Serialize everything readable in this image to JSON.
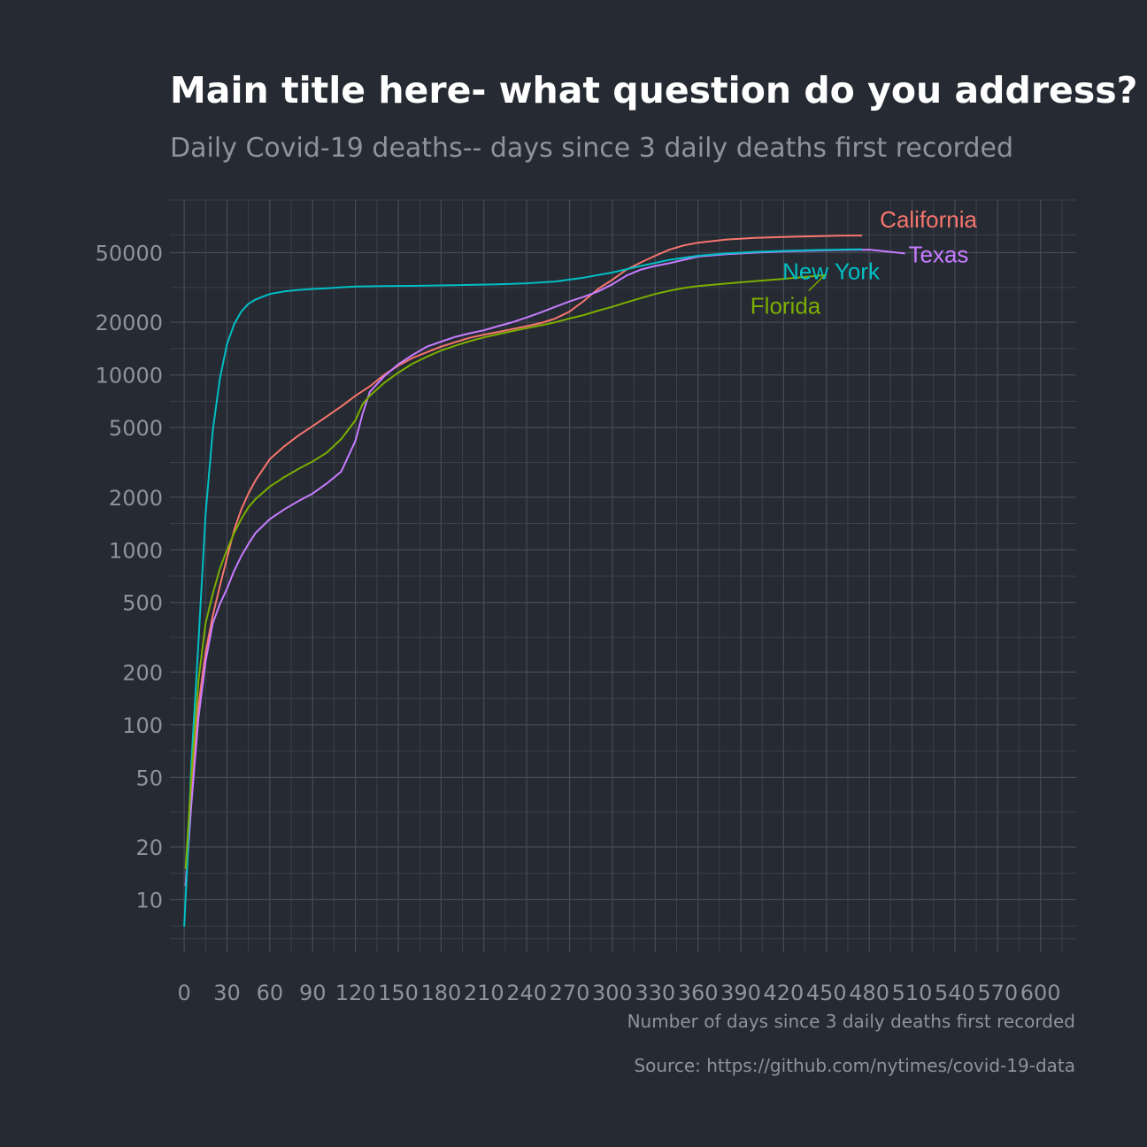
{
  "title": "Main title here- what question do you address?",
  "subtitle": "Daily Covid-19 deaths-- days since 3 daily deaths first recorded",
  "caption": "Source: https://github.com/nytimes/covid-19-data",
  "background": "#252a33",
  "chart_data": {
    "type": "line",
    "xlabel": "Number of days since 3 daily deaths first recorded",
    "ylabel": "",
    "x_scale": "linear",
    "y_scale": "log10",
    "xlim": [
      -10,
      625
    ],
    "ylim": [
      5,
      100000
    ],
    "grid": true,
    "legend": "none",
    "x_ticks": [
      0,
      30,
      60,
      90,
      120,
      150,
      180,
      210,
      240,
      270,
      300,
      330,
      360,
      390,
      420,
      450,
      480,
      510,
      540,
      570,
      600
    ],
    "x_tick_labels": [
      "0",
      "30",
      "60",
      "90",
      "120",
      "150",
      "180",
      "210",
      "240",
      "270",
      "300",
      "330",
      "360",
      "390",
      "420",
      "450",
      "480",
      "510",
      "540",
      "570",
      "600"
    ],
    "y_ticks": [
      10,
      20,
      50,
      100,
      200,
      500,
      1000,
      2000,
      5000,
      10000,
      20000,
      50000
    ],
    "y_tick_labels": [
      "10",
      "20",
      "50",
      "100",
      "200",
      "500",
      "1000",
      "2000",
      "5000",
      "10000",
      "20000",
      "50000"
    ],
    "series": [
      {
        "name": "California",
        "color": "#f8766d",
        "x": [
          1,
          5,
          10,
          15,
          20,
          25,
          30,
          35,
          40,
          45,
          50,
          60,
          70,
          80,
          90,
          100,
          110,
          120,
          130,
          140,
          150,
          160,
          170,
          180,
          190,
          200,
          210,
          220,
          230,
          240,
          250,
          260,
          270,
          280,
          290,
          300,
          310,
          320,
          330,
          340,
          350,
          360,
          380,
          400,
          420,
          440,
          460,
          475
        ],
        "values": [
          12,
          40,
          130,
          260,
          420,
          620,
          900,
          1300,
          1700,
          2100,
          2500,
          3300,
          3900,
          4500,
          5100,
          5800,
          6600,
          7600,
          8600,
          10000,
          11300,
          12500,
          13500,
          14500,
          15400,
          16300,
          17000,
          17600,
          18300,
          19000,
          19800,
          21000,
          23000,
          26500,
          31000,
          35000,
          40000,
          44000,
          48000,
          52000,
          55000,
          57000,
          59500,
          60800,
          61500,
          62000,
          62500,
          62700
        ]
      },
      {
        "name": "Texas",
        "color": "#c77cff",
        "x": [
          1,
          5,
          10,
          15,
          20,
          25,
          30,
          35,
          40,
          45,
          50,
          60,
          70,
          80,
          90,
          100,
          110,
          120,
          125,
          130,
          140,
          150,
          160,
          170,
          180,
          190,
          200,
          210,
          220,
          230,
          240,
          250,
          260,
          270,
          280,
          290,
          300,
          310,
          320,
          330,
          340,
          350,
          360,
          380,
          400,
          420,
          440,
          460,
          480,
          495,
          505
        ],
        "values": [
          12,
          35,
          110,
          230,
          380,
          490,
          600,
          760,
          920,
          1080,
          1250,
          1500,
          1700,
          1900,
          2100,
          2400,
          2800,
          4200,
          6000,
          8000,
          9800,
          11500,
          13000,
          14500,
          15500,
          16500,
          17300,
          18000,
          19000,
          20000,
          21300,
          22800,
          24500,
          26300,
          28000,
          30000,
          33000,
          37000,
          40000,
          42000,
          43500,
          45500,
          47500,
          49000,
          50000,
          50800,
          51300,
          51800,
          52000,
          50500,
          49500
        ]
      },
      {
        "name": "New York",
        "color": "#00bfc4",
        "x": [
          0,
          2,
          5,
          10,
          15,
          20,
          25,
          30,
          35,
          40,
          45,
          50,
          60,
          70,
          80,
          90,
          100,
          110,
          120,
          140,
          160,
          180,
          200,
          220,
          240,
          260,
          280,
          300,
          320,
          340,
          360,
          380,
          400,
          420,
          440,
          460,
          475
        ],
        "values": [
          7,
          15,
          60,
          300,
          1600,
          4800,
          9500,
          15000,
          19500,
          23000,
          25500,
          27000,
          29000,
          30000,
          30600,
          31000,
          31300,
          31700,
          32000,
          32200,
          32300,
          32500,
          32700,
          33000,
          33400,
          34200,
          36000,
          38500,
          42000,
          45500,
          48000,
          49500,
          50500,
          51200,
          51700,
          52100,
          52300
        ]
      },
      {
        "name": "Florida",
        "color": "#7cae00",
        "x": [
          1,
          5,
          10,
          15,
          20,
          25,
          30,
          35,
          40,
          45,
          50,
          60,
          70,
          80,
          90,
          100,
          110,
          120,
          125,
          130,
          140,
          150,
          160,
          170,
          180,
          190,
          200,
          210,
          220,
          230,
          240,
          250,
          260,
          270,
          280,
          290,
          300,
          310,
          320,
          330,
          340,
          350,
          360,
          380,
          400,
          420,
          440,
          450
        ],
        "values": [
          15,
          50,
          180,
          380,
          560,
          780,
          1000,
          1250,
          1500,
          1750,
          1950,
          2300,
          2600,
          2900,
          3200,
          3600,
          4300,
          5500,
          6800,
          7600,
          9000,
          10300,
          11600,
          12700,
          13800,
          14700,
          15600,
          16400,
          17100,
          17800,
          18500,
          19200,
          20000,
          21000,
          22000,
          23300,
          24500,
          26000,
          27500,
          29000,
          30300,
          31400,
          32200,
          33300,
          34400,
          35400,
          36600,
          37300
        ]
      }
    ],
    "annotations": [
      {
        "text": "California",
        "color": "#f8766d",
        "x": 480,
        "y": 62700
      },
      {
        "text": "Texas",
        "color": "#c77cff",
        "x": 505,
        "y": 49500
      },
      {
        "text": "New York",
        "color": "#00bfc4",
        "x": 475,
        "y": 52300
      },
      {
        "text": "Florida",
        "color": "#7cae00",
        "x": 450,
        "y": 37300
      }
    ]
  }
}
